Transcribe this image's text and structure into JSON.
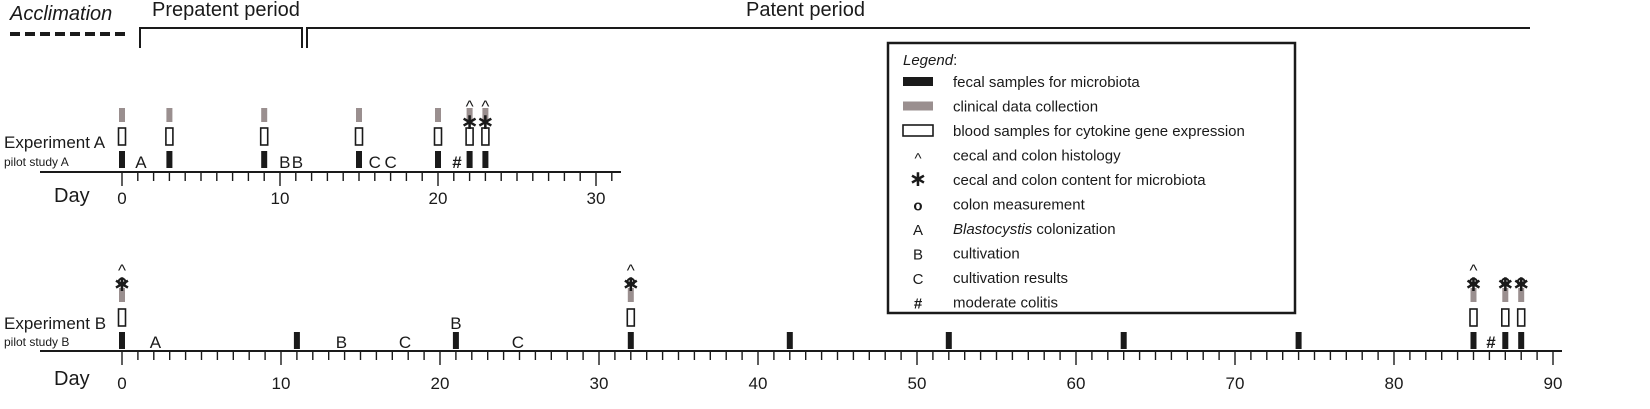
{
  "header": {
    "acclimation": "Acclimation",
    "prepatent": "Prepatent period",
    "patent": "Patent period"
  },
  "legend": {
    "title": "Legend",
    "title_colon": ":",
    "items": [
      {
        "kind": "fecal",
        "label": "fecal samples for microbiota"
      },
      {
        "kind": "clinical",
        "label": "clinical data collection"
      },
      {
        "kind": "blood",
        "label": "blood samples for cytokine gene expression"
      },
      {
        "kind": "caret",
        "symbol": "^",
        "label": "cecal and colon histology"
      },
      {
        "kind": "star",
        "symbol": "∗",
        "label": "cecal and colon content for microbiota"
      },
      {
        "kind": "circle",
        "symbol": "o",
        "label": "colon measurement"
      },
      {
        "kind": "letter",
        "symbol": "A",
        "label": "colonization",
        "label_italic": "Blastocystis"
      },
      {
        "kind": "letter",
        "symbol": "B",
        "label": "cultivation"
      },
      {
        "kind": "letter",
        "symbol": "C",
        "label": "cultivation results"
      },
      {
        "kind": "hash",
        "symbol": "#",
        "label": "moderate colitis"
      }
    ]
  },
  "axis_label": "Day",
  "colors": {
    "fecal": "#1a1a1a",
    "clinical": "#9a8f8f",
    "blood_stroke": "#1a1a1a",
    "line": "#1a1a1a"
  },
  "experiments": [
    {
      "id": "A",
      "title": "Experiment A",
      "subtitle": "pilot study A",
      "axis_max": 31,
      "tick_labels": [
        0,
        10,
        20,
        30
      ],
      "fecal_days": [
        0,
        3,
        9,
        15,
        20,
        22,
        23
      ],
      "clinical_days": [
        0,
        3,
        9,
        15,
        20,
        22,
        23
      ],
      "blood_days": [
        0,
        3,
        9,
        15,
        20,
        22,
        23
      ],
      "star_days": [
        22,
        23
      ],
      "caret_days": [
        22,
        23
      ],
      "circle_days": [],
      "letters": [
        {
          "day": 1.2,
          "text": "A"
        },
        {
          "day": 10.3,
          "text": "B"
        },
        {
          "day": 11.1,
          "text": "B"
        },
        {
          "day": 16.0,
          "text": "C"
        },
        {
          "day": 17.0,
          "text": "C"
        }
      ],
      "hash_days": [
        21.2
      ]
    },
    {
      "id": "B",
      "title": "Experiment B",
      "subtitle": "pilot study B",
      "axis_max": 90,
      "tick_labels": [
        0,
        10,
        20,
        30,
        40,
        50,
        60,
        70,
        80,
        90
      ],
      "fecal_days": [
        0,
        11,
        21,
        32,
        42,
        52,
        63,
        74,
        85,
        87,
        88
      ],
      "clinical_days": [
        0,
        32,
        85,
        87,
        88
      ],
      "blood_days": [
        0,
        32,
        85,
        87,
        88
      ],
      "star_days": [
        0,
        32,
        85,
        87,
        88
      ],
      "caret_days": [
        0,
        32,
        85
      ],
      "circle_days": [
        0,
        32,
        85,
        87,
        88
      ],
      "letters": [
        {
          "day": 2.1,
          "text": "A"
        },
        {
          "day": 13.8,
          "text": "B"
        },
        {
          "day": 17.8,
          "text": "C"
        },
        {
          "day": 21.0,
          "text": "B",
          "raised": true
        },
        {
          "day": 24.9,
          "text": "C"
        }
      ],
      "hash_days": [
        86.1
      ]
    }
  ]
}
